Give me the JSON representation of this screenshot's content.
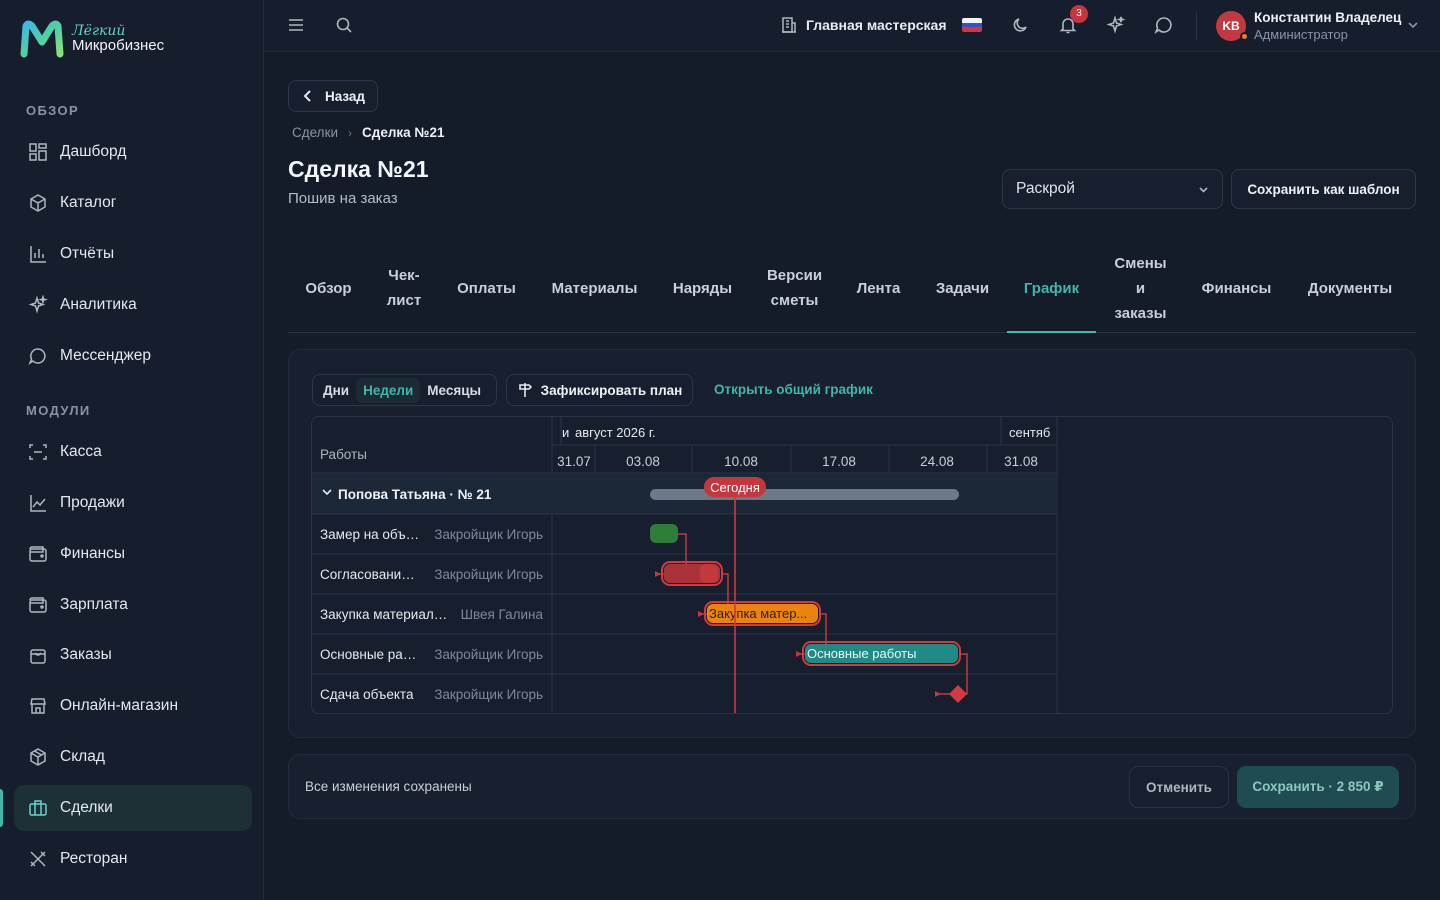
{
  "app": {
    "logo_small": "Лёгкий",
    "logo_big": "Микробизнес"
  },
  "sidebar": {
    "sections": [
      {
        "title": "ОБЗОР"
      },
      {
        "title": "МОДУЛИ"
      }
    ],
    "items": [
      {
        "label": "Дашборд",
        "icon": "dashboard-icon"
      },
      {
        "label": "Каталог",
        "icon": "catalog-icon"
      },
      {
        "label": "Отчёты",
        "icon": "reports-icon"
      },
      {
        "label": "Аналитика",
        "icon": "sparkle-icon"
      },
      {
        "label": "Мессенджер",
        "icon": "chat-icon"
      },
      {
        "label": "Касса",
        "icon": "scan-icon"
      },
      {
        "label": "Продажи",
        "icon": "chart-line-icon"
      },
      {
        "label": "Финансы",
        "icon": "wallet-icon"
      },
      {
        "label": "Зарплата",
        "icon": "wallet-icon"
      },
      {
        "label": "Заказы",
        "icon": "bag-icon"
      },
      {
        "label": "Онлайн-магазин",
        "icon": "store-icon"
      },
      {
        "label": "Склад",
        "icon": "box-icon"
      },
      {
        "label": "Сделки",
        "icon": "briefcase-icon",
        "active": true
      },
      {
        "label": "Ресторан",
        "icon": "utensils-icon"
      }
    ]
  },
  "topbar": {
    "workshop": "Главная мастерская",
    "notifications_count": "3",
    "user": {
      "initials": "KB",
      "name": "Константин Владелец",
      "role": "Администратор"
    }
  },
  "page": {
    "back_label": "Назад",
    "breadcrumbs": {
      "parent": "Сделки",
      "current": "Сделка №21"
    },
    "title": "Сделка №21",
    "subtitle": "Пошив на заказ",
    "stage_select": "Раскрой",
    "save_template_label": "Сохранить как шаблон"
  },
  "tabs": [
    {
      "lines": [
        "Обзор"
      ]
    },
    {
      "lines": [
        "Чек-",
        "лист"
      ]
    },
    {
      "lines": [
        "Оплаты"
      ]
    },
    {
      "lines": [
        "Материалы"
      ]
    },
    {
      "lines": [
        "Наряды"
      ]
    },
    {
      "lines": [
        "Версии",
        "сметы"
      ]
    },
    {
      "lines": [
        "Лента"
      ]
    },
    {
      "lines": [
        "Задачи"
      ]
    },
    {
      "lines": [
        "График"
      ],
      "active": true
    },
    {
      "lines": [
        "Смены",
        "и",
        "заказы"
      ]
    },
    {
      "lines": [
        "Финансы"
      ]
    },
    {
      "lines": [
        "Документы"
      ]
    }
  ],
  "gantt_toolbar": {
    "scale_options": [
      "Дни",
      "Недели",
      "Месяцы"
    ],
    "scale_selected": "Недели",
    "fix_plan_label": "Зафиксировать план",
    "open_general_label": "Открыть общий график"
  },
  "gantt": {
    "column_header": "Работы",
    "months": [
      {
        "label": "и"
      },
      {
        "label": "август 2026 г."
      },
      {
        "label": "сентяб"
      }
    ],
    "weeks": [
      "31.07",
      "03.08",
      "10.08",
      "17.08",
      "24.08",
      "31.08"
    ],
    "today_label": "Сегодня",
    "group": {
      "label": "Попова Татьяна · № 21"
    },
    "rows": [
      {
        "name": "Замер на объ…",
        "assignee": "Закройщик Игорь",
        "bar_label": "",
        "color": "#2f7d3a"
      },
      {
        "name": "Согласовани…",
        "assignee": "Закройщик Игорь",
        "bar_label": "",
        "color": "#c2383d"
      },
      {
        "name": "Закупка материал…",
        "assignee": "Швея Галина",
        "bar_label": "Закупка матер...",
        "color": "#e8840f"
      },
      {
        "name": "Основные ра…",
        "assignee": "Закройщик Игорь",
        "bar_label": "Основные работы",
        "color": "#1f8a86"
      },
      {
        "name": "Сдача объекта",
        "assignee": "Закройщик Игорь",
        "bar_label": "",
        "color": "#d13a40"
      }
    ]
  },
  "footer": {
    "status": "Все изменения сохранены",
    "cancel_label": "Отменить",
    "save_label": "Сохранить · 2 850 ₽"
  },
  "colors": {
    "accent": "#3fb7ab",
    "danger": "#d13a40",
    "bg": "#141b29"
  }
}
